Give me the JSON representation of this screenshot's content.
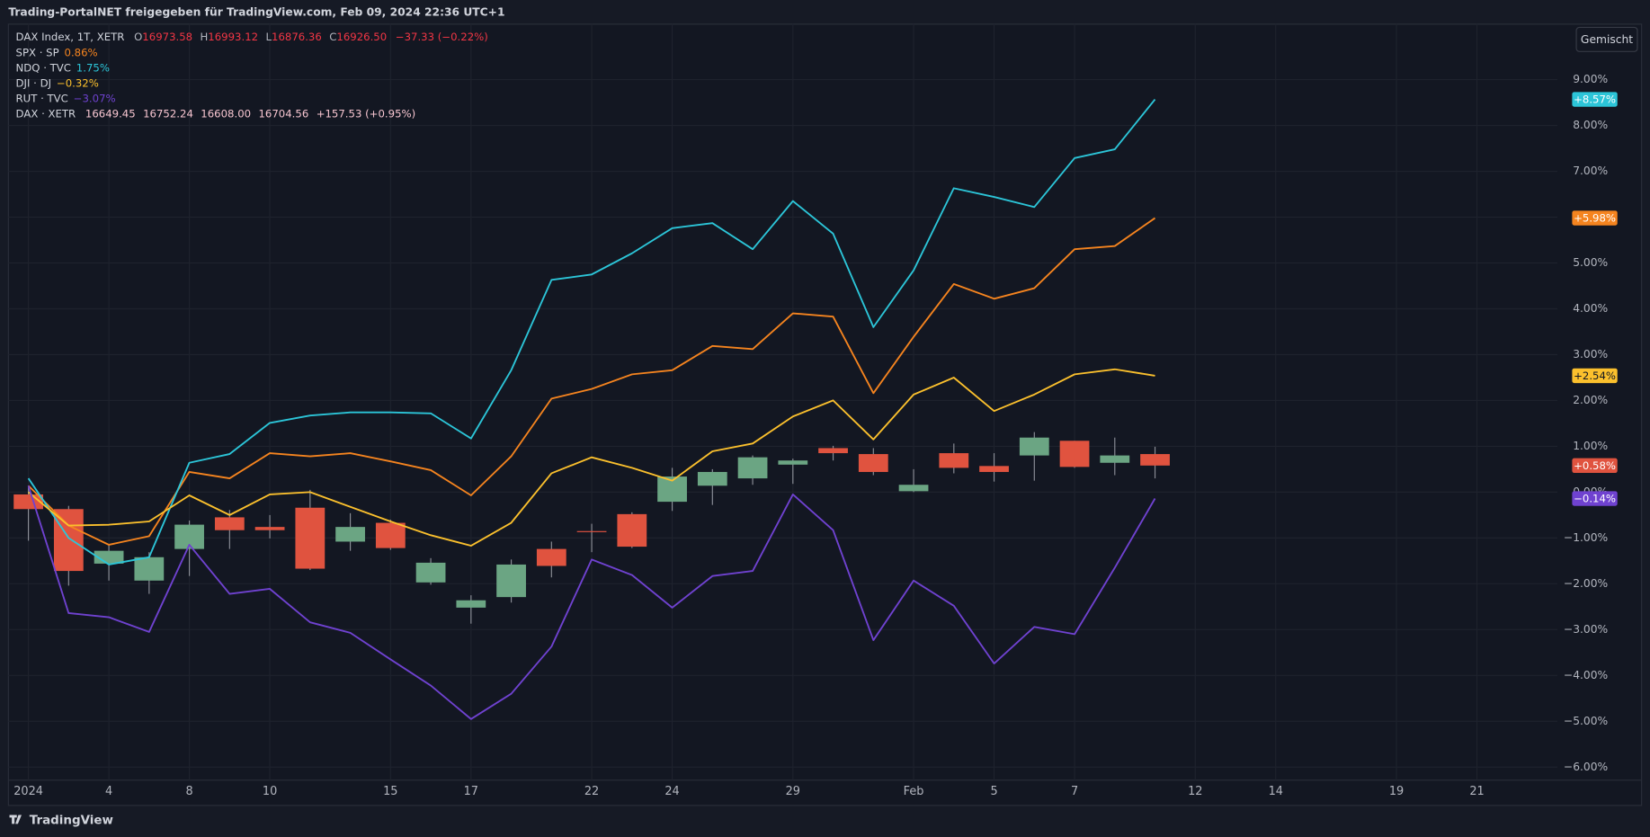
{
  "screen": {
    "caption": "Trading-PortalNET freigegeben für TradingView.com, Feb 09, 2024 22:36 UTC+1",
    "button": "Gemischt",
    "brand": "TradingView"
  },
  "chart_data": {
    "type": "candlestick",
    "title": "DAX Index, 1T, XETR",
    "ohlc": [
      [
        "O",
        "16973.58"
      ],
      [
        "H",
        "16993.12"
      ],
      [
        "L",
        "16876.36"
      ],
      [
        "C",
        "16926.50"
      ]
    ],
    "change": "−37.33 (−0.22%)",
    "up_color": "#6ba583",
    "down_color": "#e0533f",
    "categories": [
      "2024",
      null,
      "4",
      null,
      "8",
      null,
      "10",
      null,
      null,
      "15",
      null,
      "17",
      null,
      null,
      "22",
      null,
      "24",
      null,
      null,
      "29",
      null,
      null,
      "Feb",
      null,
      "5",
      null,
      "7",
      null,
      null,
      "12",
      null,
      "14",
      null,
      null,
      "19",
      null,
      "21",
      null,
      null
    ],
    "open": [
      -0.05,
      -0.37,
      -1.56,
      -1.93,
      -1.24,
      -0.55,
      -0.76,
      -0.34,
      -1.08,
      -0.67,
      -1.97,
      -2.52,
      -2.29,
      -1.24,
      -0.85,
      -0.48,
      -0.21,
      0.14,
      0.3,
      0.6,
      0.96,
      0.83,
      0.02,
      0.85,
      0.57,
      0.8,
      1.12,
      0.64,
      0.83,
      null,
      null,
      null,
      null,
      null,
      null,
      null,
      null,
      null,
      null
    ],
    "high": [
      0.14,
      -0.3,
      -1.15,
      -1.31,
      -0.62,
      -0.39,
      -0.5,
      0.05,
      -0.46,
      -0.6,
      -1.44,
      -2.25,
      -1.47,
      -1.08,
      -0.69,
      -0.44,
      0.53,
      0.5,
      0.8,
      0.73,
      1.01,
      0.96,
      0.5,
      1.06,
      0.85,
      1.31,
      1.12,
      1.19,
      0.99,
      null,
      null,
      null,
      null,
      null,
      null,
      null,
      null,
      null,
      null
    ],
    "low": [
      -1.06,
      -2.04,
      -1.93,
      -2.22,
      -1.83,
      -1.24,
      -1.01,
      -1.7,
      -1.28,
      -1.26,
      -2.02,
      -2.87,
      -2.41,
      -1.86,
      -1.31,
      -1.22,
      -0.41,
      -0.28,
      0.16,
      0.18,
      0.69,
      0.37,
      0.0,
      0.41,
      0.23,
      0.25,
      0.53,
      0.37,
      0.3,
      null,
      null,
      null,
      null,
      null,
      null,
      null,
      null,
      null,
      null
    ],
    "close": [
      -0.37,
      -1.72,
      -1.28,
      -1.42,
      -0.71,
      -0.83,
      -0.83,
      -1.67,
      -0.76,
      -1.22,
      -1.54,
      -2.36,
      -1.58,
      -1.61,
      -0.87,
      -1.19,
      0.34,
      0.44,
      0.76,
      0.69,
      0.85,
      0.44,
      0.16,
      0.53,
      0.44,
      1.19,
      0.55,
      0.8,
      0.58,
      null,
      null,
      null,
      null,
      null,
      null,
      null,
      null,
      null,
      null
    ],
    "value_labels": [
      null,
      null,
      null,
      null,
      null,
      null,
      null,
      null,
      null,
      null,
      null,
      null,
      null,
      null,
      null,
      null,
      null,
      null,
      null,
      null,
      null,
      null,
      null,
      null,
      null,
      null,
      null,
      null,
      "+0.58%",
      null,
      null,
      null,
      null,
      null,
      null,
      null,
      null,
      null,
      null
    ],
    "series": [
      {
        "name": "SPX · SP",
        "legend_value": "0.86%",
        "type": "line",
        "color": "#f5841f",
        "text_color": "#ffffff",
        "values": [
          0.14,
          -0.73,
          -1.15,
          -0.96,
          0.44,
          0.3,
          0.85,
          0.78,
          0.85,
          0.67,
          0.48,
          -0.07,
          0.78,
          2.04,
          2.25,
          2.57,
          2.66,
          3.19,
          3.12,
          3.9,
          3.83,
          2.16,
          3.39,
          4.54,
          4.22,
          4.45,
          5.3,
          5.37,
          5.98,
          null,
          null,
          null,
          null,
          null,
          null,
          null,
          null,
          null,
          null
        ],
        "value_labels": [
          null,
          null,
          null,
          null,
          null,
          null,
          null,
          null,
          null,
          null,
          null,
          null,
          null,
          null,
          null,
          null,
          null,
          null,
          null,
          null,
          null,
          null,
          null,
          null,
          null,
          null,
          null,
          null,
          "+5.98%",
          null,
          null,
          null,
          null,
          null,
          null,
          null,
          null,
          null,
          null
        ]
      },
      {
        "name": "NDQ · TVC",
        "legend_value": "1.75%",
        "type": "line",
        "color": "#2cc5d8",
        "text_color": "#ffffff",
        "values": [
          0.3,
          -1.0,
          -1.58,
          -1.42,
          0.64,
          0.83,
          1.51,
          1.67,
          1.74,
          1.74,
          1.72,
          1.17,
          2.66,
          4.63,
          4.75,
          5.21,
          5.76,
          5.87,
          5.3,
          6.35,
          5.64,
          3.6,
          4.84,
          6.63,
          6.44,
          6.22,
          7.29,
          7.48,
          8.57,
          null,
          null,
          null,
          null,
          null,
          null,
          null,
          null,
          null,
          null
        ],
        "value_labels": [
          null,
          null,
          null,
          null,
          null,
          null,
          null,
          null,
          null,
          null,
          null,
          null,
          null,
          null,
          null,
          null,
          null,
          null,
          null,
          null,
          null,
          null,
          null,
          null,
          null,
          null,
          null,
          null,
          "+8.57%",
          null,
          null,
          null,
          null,
          null,
          null,
          null,
          null,
          null,
          null
        ]
      },
      {
        "name": "DJI · DJ",
        "legend_value": "−0.32%",
        "type": "line",
        "color": "#fbc02d",
        "text_color": "#131722",
        "values": [
          0.0,
          -0.73,
          -0.71,
          -0.64,
          -0.07,
          -0.5,
          -0.05,
          0.0,
          -0.32,
          -0.64,
          -0.94,
          -1.17,
          -0.67,
          0.41,
          0.76,
          0.53,
          0.25,
          0.89,
          1.06,
          1.65,
          2.0,
          1.15,
          2.13,
          2.5,
          1.77,
          2.13,
          2.57,
          2.68,
          2.54,
          null,
          null,
          null,
          null,
          null,
          null,
          null,
          null,
          null,
          null
        ],
        "value_labels": [
          null,
          null,
          null,
          null,
          null,
          null,
          null,
          null,
          null,
          null,
          null,
          null,
          null,
          null,
          null,
          null,
          null,
          null,
          null,
          null,
          null,
          null,
          null,
          null,
          null,
          null,
          null,
          null,
          "+2.54%",
          null,
          null,
          null,
          null,
          null,
          null,
          null,
          null,
          null,
          null
        ]
      },
      {
        "name": "RUT · TVC",
        "legend_value": "−3.07%",
        "type": "line",
        "color": "#6f42d0",
        "text_color": "#ffffff",
        "values": [
          0.14,
          -2.64,
          -2.73,
          -3.05,
          -1.15,
          -2.22,
          -2.11,
          -2.84,
          -3.07,
          -3.65,
          -4.22,
          -4.95,
          -4.4,
          -3.37,
          -1.47,
          -1.81,
          -2.52,
          -1.83,
          -1.72,
          -0.05,
          -0.83,
          -3.23,
          -1.93,
          -2.48,
          -3.74,
          -2.94,
          -3.1,
          -1.65,
          -0.14,
          null,
          null,
          null,
          null,
          null,
          null,
          null,
          null,
          null,
          null
        ],
        "value_labels": [
          null,
          null,
          null,
          null,
          null,
          null,
          null,
          null,
          null,
          null,
          null,
          null,
          null,
          null,
          null,
          null,
          null,
          null,
          null,
          null,
          null,
          null,
          null,
          null,
          null,
          null,
          null,
          null,
          "−0.14%",
          null,
          null,
          null,
          null,
          null,
          null,
          null,
          null,
          null,
          null
        ]
      }
    ],
    "legend_extra": {
      "name": "DAX · XETR",
      "fields": [
        "16649.45",
        "16752.24",
        "16608.00",
        "16704.56",
        "+157.53 (+0.95%)"
      ]
    },
    "ylim": [
      -6.24,
      10.21
    ],
    "yticks": [
      {
        "value": 9,
        "label": "9.00%"
      },
      {
        "value": 8,
        "label": "8.00%"
      },
      {
        "value": 7,
        "label": "7.00%"
      },
      {
        "value": 6,
        "label": "6.00%"
      },
      {
        "value": 5,
        "label": "5.00%"
      },
      {
        "value": 4,
        "label": "4.00%"
      },
      {
        "value": 3,
        "label": "3.00%"
      },
      {
        "value": 2,
        "label": "2.00%"
      },
      {
        "value": 1,
        "label": "1.00%"
      },
      {
        "value": 0,
        "label": "0.00%"
      },
      {
        "value": -1,
        "label": "−1.00%"
      },
      {
        "value": -2,
        "label": "−2.00%"
      },
      {
        "value": -3,
        "label": "−3.00%"
      },
      {
        "value": -4,
        "label": "−4.00%"
      },
      {
        "value": -5,
        "label": "−5.00%"
      },
      {
        "value": -6,
        "label": "−6.00%"
      }
    ],
    "grid": true
  }
}
